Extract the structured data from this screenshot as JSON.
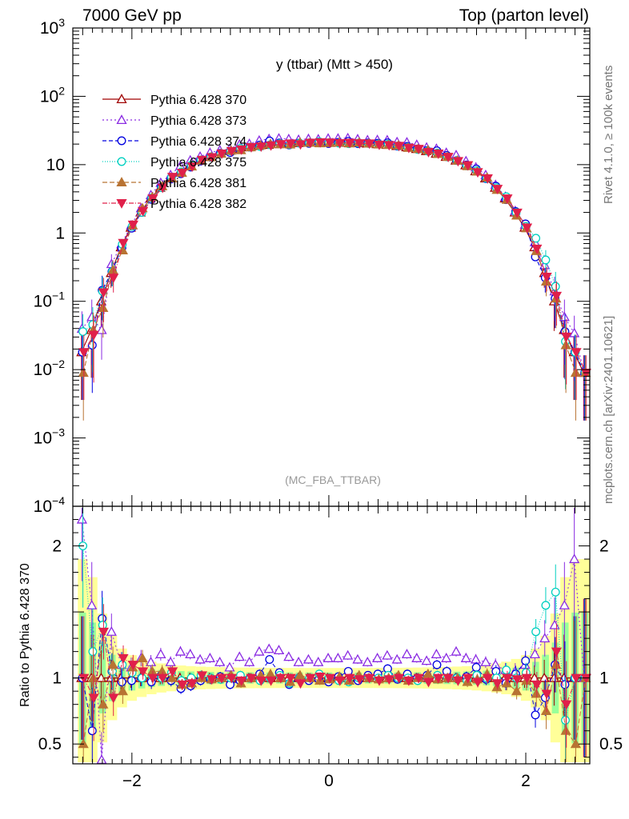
{
  "header": {
    "left": "7000 GeV pp",
    "right": "Top (parton level)"
  },
  "side": {
    "rivet": "Rivet 4.1.0, ≥ 100k events",
    "mcplots": "mcplots.cern.ch [arXiv:2401.10621]"
  },
  "colors": {
    "band_yellow": "#ffff99",
    "band_green": "#99ff99"
  },
  "chart_data": {
    "type": "line",
    "title": "y (ttbar) (Mtt > 450)",
    "watermark": "(MC_FBA_TTBAR)",
    "xlabel": "",
    "ylabel_ratio": "Ratio to Pythia 6.428 370",
    "xlim": [
      -2.6,
      2.65
    ],
    "ylim_main": [
      0.0001,
      1000
    ],
    "ylim_ratio": [
      0.35,
      2.3
    ],
    "yscale_main": "log",
    "x_ticks": [
      "−2",
      "0",
      "2"
    ],
    "x_tick_values": [
      -2,
      0,
      2
    ],
    "y_ticks_main": [
      {
        "value": 1000,
        "base": "10",
        "exp": "3"
      },
      {
        "value": 100,
        "base": "10",
        "exp": "2"
      },
      {
        "value": 10,
        "base": "10",
        "exp": ""
      },
      {
        "value": 1,
        "base": "1",
        "exp": ""
      },
      {
        "value": 0.1,
        "base": "10",
        "exp": "−1"
      },
      {
        "value": 0.01,
        "base": "10",
        "exp": "−2"
      },
      {
        "value": 0.001,
        "base": "10",
        "exp": "−3"
      },
      {
        "value": 0.0001,
        "base": "10",
        "exp": "−4"
      }
    ],
    "y_ticks_ratio": [
      {
        "value": 2,
        "label": "2"
      },
      {
        "value": 1,
        "label": "1"
      },
      {
        "value": 0.5,
        "label": "0.5"
      }
    ],
    "x": [
      -2.5,
      -2.4,
      -2.3,
      -2.2,
      -2.1,
      -2.0,
      -1.9,
      -1.8,
      -1.7,
      -1.6,
      -1.5,
      -1.4,
      -1.3,
      -1.2,
      -1.1,
      -1.0,
      -0.9,
      -0.8,
      -0.7,
      -0.6,
      -0.5,
      -0.4,
      -0.3,
      -0.2,
      -0.1,
      0.0,
      0.1,
      0.2,
      0.3,
      0.4,
      0.5,
      0.6,
      0.7,
      0.8,
      0.9,
      1.0,
      1.1,
      1.2,
      1.3,
      1.4,
      1.5,
      1.6,
      1.7,
      1.8,
      1.9,
      2.0,
      2.1,
      2.2,
      2.3,
      2.4,
      2.5,
      2.6
    ],
    "reference": [
      0.018,
      0.038,
      0.1,
      0.26,
      0.62,
      1.2,
      2.0,
      3.2,
      4.6,
      6.3,
      8.0,
      9.8,
      11.5,
      13.0,
      14.5,
      15.8,
      17.0,
      18.0,
      18.8,
      19.5,
      20.0,
      20.4,
      20.7,
      20.9,
      21.0,
      21.0,
      21.0,
      20.9,
      20.7,
      20.4,
      20.0,
      19.5,
      18.8,
      18.0,
      17.0,
      15.8,
      14.5,
      13.0,
      11.5,
      9.8,
      8.0,
      6.3,
      4.6,
      3.2,
      2.0,
      1.2,
      0.62,
      0.26,
      0.1,
      0.038,
      0.018,
      0.009
    ],
    "series": [
      {
        "name": "Pythia 6.428 370",
        "color": "#a00000",
        "marker": "triangle-open",
        "dash": "",
        "ratio": [
          1.0,
          1.0,
          1.0,
          1.0,
          1.0,
          1.0,
          1.0,
          1.0,
          1.0,
          1.0,
          1.0,
          1.0,
          1.0,
          1.0,
          1.0,
          1.0,
          1.0,
          1.0,
          1.0,
          1.0,
          1.0,
          1.0,
          1.0,
          1.0,
          1.0,
          1.0,
          1.0,
          1.0,
          1.0,
          1.0,
          1.0,
          1.0,
          1.0,
          1.0,
          1.0,
          1.0,
          1.0,
          1.0,
          1.0,
          1.0,
          1.0,
          1.0,
          1.0,
          1.0,
          1.0,
          1.0,
          1.0,
          1.0,
          1.0,
          1.0,
          1.0,
          1.0
        ]
      },
      {
        "name": "Pythia 6.428 373",
        "color": "#8a2be2",
        "marker": "triangle-open",
        "dash": "2,3",
        "ratio": [
          2.2,
          1.55,
          0.38,
          1.35,
          1.1,
          1.08,
          1.15,
          1.12,
          1.18,
          1.12,
          1.2,
          1.18,
          1.14,
          1.15,
          1.12,
          1.08,
          1.16,
          1.12,
          1.2,
          1.22,
          1.21,
          1.16,
          1.12,
          1.14,
          1.12,
          1.15,
          1.15,
          1.17,
          1.14,
          1.12,
          1.15,
          1.17,
          1.14,
          1.18,
          1.15,
          1.13,
          1.18,
          1.15,
          1.2,
          1.15,
          1.14,
          1.12,
          1.1,
          1.06,
          1.05,
          1.1,
          1.18,
          1.3,
          1.4,
          1.55,
          1.9,
          1.0
        ]
      },
      {
        "name": "Pythia 6.428 374",
        "color": "#0000e0",
        "marker": "circle-open",
        "dash": "5,3",
        "ratio": [
          1.0,
          0.6,
          1.45,
          1.05,
          0.97,
          0.98,
          1.0,
          0.97,
          1.02,
          0.98,
          0.92,
          0.94,
          0.98,
          0.99,
          1.01,
          0.95,
          0.98,
          1.0,
          1.03,
          1.14,
          1.04,
          0.95,
          1.0,
          0.98,
          0.99,
          0.97,
          1.01,
          1.05,
          0.98,
          1.02,
          1.03,
          1.07,
          0.99,
          1.03,
          1.0,
          1.02,
          1.1,
          1.05,
          1.0,
          1.01,
          1.08,
          0.99,
          1.05,
          0.96,
          1.03,
          1.13,
          0.72,
          0.85,
          1.1,
          0.95,
          1.0,
          1.0
        ]
      },
      {
        "name": "Pythia 6.428 375",
        "color": "#00d0c0",
        "marker": "circle-open",
        "dash": "1,2",
        "ratio": [
          2.0,
          1.2,
          1.4,
          1.05,
          1.1,
          1.04,
          1.0,
          1.02,
          1.0,
          1.04,
          0.98,
          1.0,
          1.02,
          1.0,
          0.99,
          1.0,
          1.02,
          1.0,
          0.98,
          1.0,
          1.02,
          0.96,
          1.0,
          1.0,
          1.03,
          1.0,
          0.98,
          0.97,
          1.0,
          1.0,
          1.0,
          1.02,
          1.0,
          1.0,
          0.98,
          1.0,
          1.02,
          1.0,
          1.0,
          0.98,
          1.02,
          1.0,
          1.0,
          1.06,
          1.0,
          1.04,
          1.35,
          1.55,
          1.65,
          0.68,
          1.0,
          1.0
        ]
      },
      {
        "name": "Pythia 6.428 381",
        "color": "#b87333",
        "marker": "triangle-filled",
        "dash": "6,3",
        "ratio": [
          0.5,
          1.0,
          0.8,
          1.1,
          0.9,
          1.08,
          1.15,
          1.05,
          1.05,
          1.0,
          0.95,
          0.96,
          1.0,
          0.99,
          1.0,
          1.02,
          0.96,
          1.0,
          1.02,
          1.03,
          1.0,
          0.97,
          1.02,
          1.0,
          0.98,
          0.99,
          1.01,
          0.98,
          1.02,
          1.0,
          0.99,
          1.0,
          1.02,
          0.98,
          1.0,
          1.03,
          0.99,
          1.0,
          1.0,
          0.97,
          0.99,
          1.03,
          0.93,
          0.96,
          0.9,
          0.98,
          0.88,
          0.75,
          1.1,
          0.6,
          0.5,
          1.0
        ]
      },
      {
        "name": "Pythia 6.428 382",
        "color": "#e0204a",
        "marker": "triangle-down-filled",
        "dash": "6,2,1,2",
        "ratio": [
          1.0,
          0.85,
          1.35,
          0.85,
          1.15,
          1.1,
          1.05,
          1.0,
          1.0,
          1.05,
          0.95,
          0.96,
          1.02,
          0.99,
          1.0,
          1.0,
          0.98,
          1.0,
          0.98,
          0.98,
          1.0,
          1.0,
          0.96,
          1.0,
          1.01,
          1.0,
          0.98,
          1.0,
          0.99,
          1.0,
          0.98,
          0.99,
          1.0,
          0.98,
          1.0,
          0.97,
          1.0,
          1.0,
          0.98,
          1.0,
          0.97,
          1.0,
          0.96,
          1.0,
          0.99,
          1.0,
          0.95,
          0.88,
          1.2,
          0.8,
          1.0,
          1.0
        ]
      }
    ]
  }
}
